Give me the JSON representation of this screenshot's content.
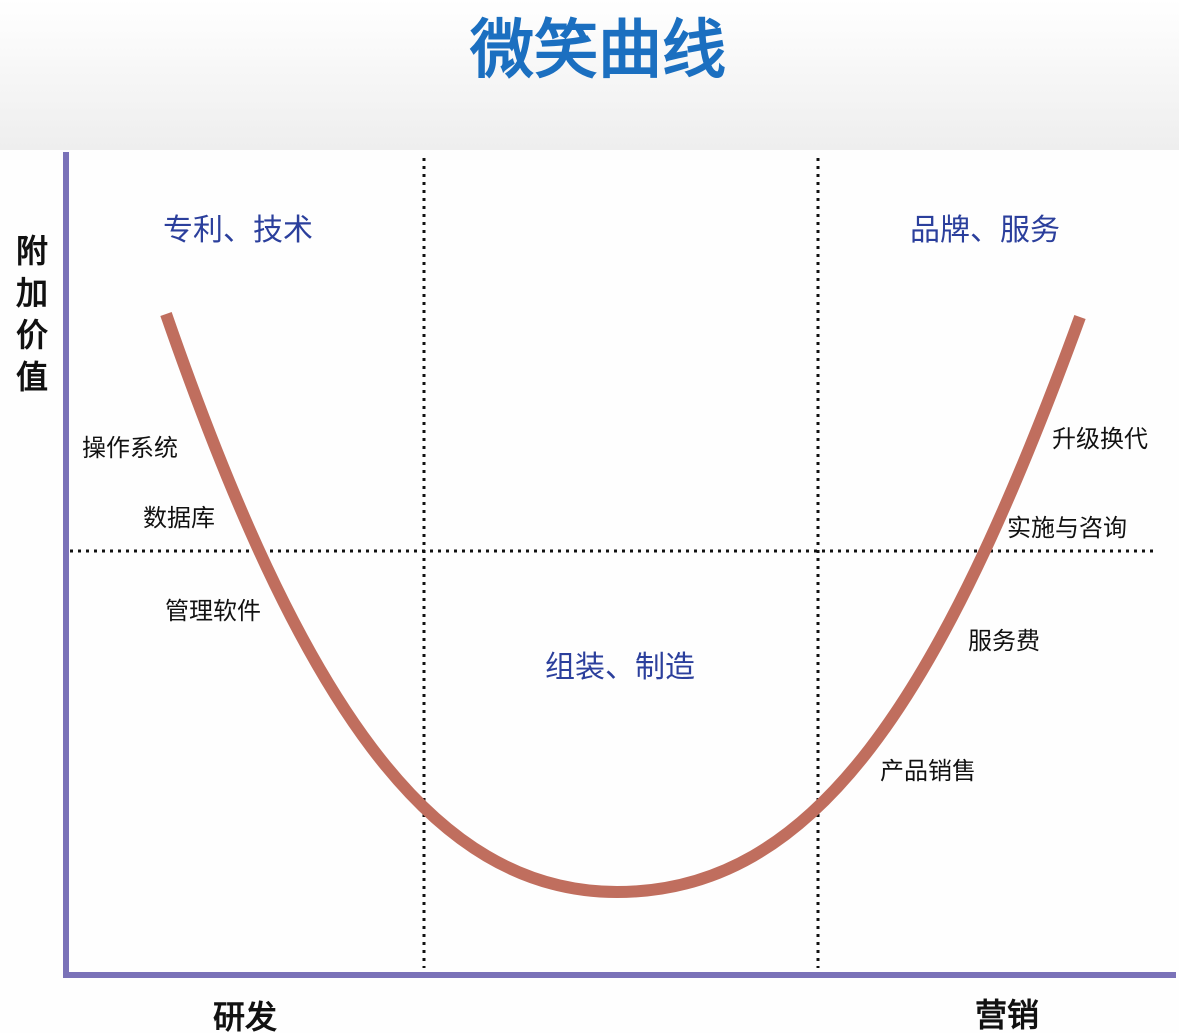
{
  "title": "微笑曲线",
  "y_axis_label": [
    "附",
    "加",
    "价",
    "值"
  ],
  "x_axis_labels": {
    "left": "研发",
    "right": "营销"
  },
  "zones": {
    "left": "专利、技术",
    "middle": "组装、制造",
    "right": "品牌、服务"
  },
  "left_items": [
    "操作系统",
    "数据库",
    "管理软件"
  ],
  "right_items": [
    "升级换代",
    "实施与咨询",
    "服务费",
    "产品销售"
  ],
  "colors": {
    "title": "#1b6fc0",
    "zone_text": "#2b3f9c",
    "axis": "#7a72b8",
    "curve": "#c06e5e"
  }
}
